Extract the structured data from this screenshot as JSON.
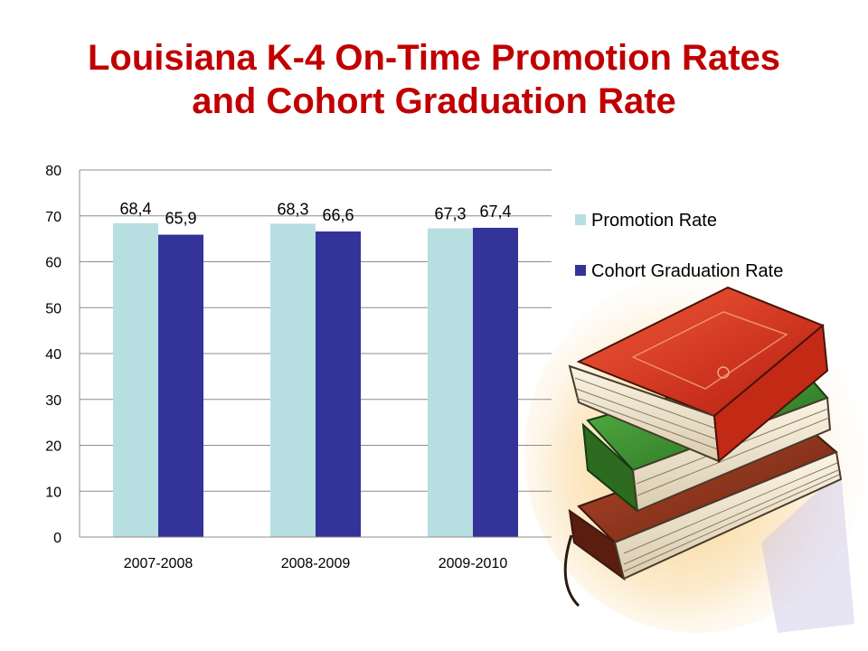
{
  "title": {
    "line1": "Louisiana K-4 On-Time Promotion Rates",
    "line2": "and Cohort Graduation Rate"
  },
  "colors": {
    "title": "#c00000",
    "promotion": "#b7dfe2",
    "graduation": "#333399",
    "grid": "#8c8c8c"
  },
  "illustration": {
    "icon": "stack-of-books-illustration"
  },
  "chart_data": {
    "type": "bar",
    "categories": [
      "2007-2008",
      "2008-2009",
      "2009-2010"
    ],
    "series": [
      {
        "name": "Promotion Rate",
        "values": [
          68.4,
          68.3,
          67.3
        ],
        "labels": [
          "68,4",
          "68,3",
          "67,3"
        ],
        "color": "#b7dfe2"
      },
      {
        "name": "Cohort Graduation Rate",
        "values": [
          65.9,
          66.6,
          67.4
        ],
        "labels": [
          "65,9",
          "66,6",
          "67,4"
        ],
        "color": "#333399"
      }
    ],
    "ylim": [
      0,
      80
    ],
    "yticks": [
      0,
      10,
      20,
      30,
      40,
      50,
      60,
      70,
      80
    ],
    "grid": true,
    "legend": "right",
    "xlabel": "",
    "ylabel": ""
  }
}
